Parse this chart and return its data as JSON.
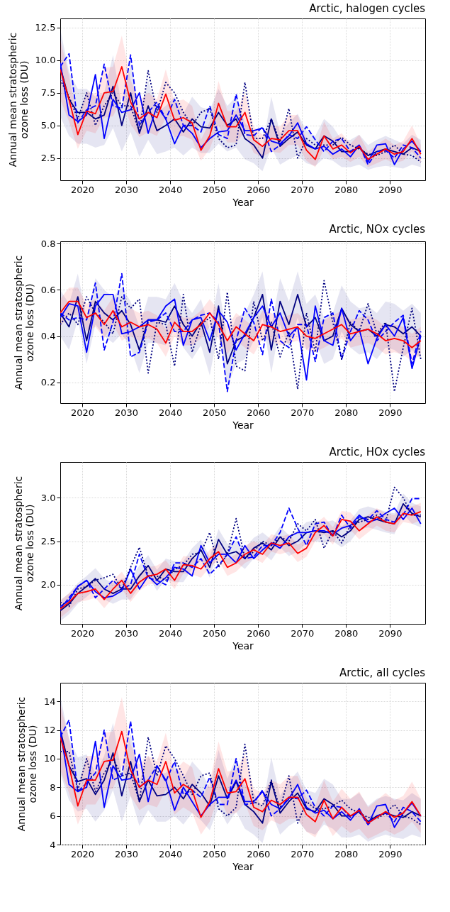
{
  "chart_data": [
    {
      "type": "line",
      "title": "Arctic, halogen cycles",
      "xlabel": "Year",
      "ylabel": "Annual mean stratospheric\nozone loss (DU)",
      "grid": true,
      "x": [
        2015,
        2017,
        2019,
        2021,
        2023,
        2025,
        2027,
        2029,
        2031,
        2033,
        2035,
        2037,
        2039,
        2041,
        2043,
        2045,
        2047,
        2049,
        2051,
        2053,
        2055,
        2057,
        2059,
        2061,
        2063,
        2065,
        2067,
        2069,
        2071,
        2073,
        2075,
        2077,
        2079,
        2081,
        2083,
        2085,
        2087,
        2089,
        2091,
        2093,
        2095,
        2097
      ],
      "xlim": [
        2015,
        2098
      ],
      "xticks": [
        2020,
        2030,
        2040,
        2050,
        2060,
        2070,
        2080,
        2090
      ],
      "ylim": [
        0.8,
        13.2
      ],
      "yticks": [
        2.5,
        {
          "value": 5,
          "label": "5.0"
        },
        7.5,
        {
          "value": 10,
          "label": "10.0"
        },
        12.5
      ],
      "series": [
        {
          "color": "#000080",
          "line_style": "solid",
          "values": [
            9.5,
            7.0,
            6.0,
            6.0,
            5.5,
            5.8,
            8.0,
            5.0,
            7.5,
            4.4,
            6.5,
            4.6,
            5.0,
            5.5,
            4.5,
            5.5,
            4.9,
            4.8,
            6.0,
            5.0,
            5.5,
            4.0,
            3.5,
            2.5,
            5.5,
            3.4,
            4.0,
            4.5,
            3.5,
            3.2,
            4.2,
            3.8,
            3.0,
            3.0,
            3.3,
            2.7,
            3.0,
            3.2,
            3.0,
            2.8,
            3.3,
            3.0
          ],
          "lower": [
            5.7,
            4.2,
            3.6,
            3.6,
            3.3,
            3.5,
            4.8,
            3.0,
            4.5,
            2.6,
            3.9,
            2.8,
            3.0,
            3.3,
            2.7,
            3.3,
            2.9,
            2.9,
            3.6,
            3.0,
            3.3,
            2.4,
            2.1,
            1.5,
            3.3,
            2.0,
            2.4,
            2.7,
            2.1,
            1.9,
            2.5,
            2.3,
            1.8,
            1.8,
            2.0,
            1.6,
            1.8,
            1.9,
            1.8,
            1.7,
            2.0,
            1.8
          ],
          "upper": [
            12.4,
            9.1,
            7.8,
            7.8,
            7.2,
            7.5,
            10.4,
            6.5,
            9.8,
            5.7,
            8.5,
            6.0,
            6.5,
            7.2,
            5.9,
            7.2,
            6.4,
            6.2,
            7.8,
            6.5,
            7.2,
            5.2,
            4.6,
            3.3,
            7.2,
            4.4,
            5.2,
            5.9,
            4.6,
            4.2,
            5.5,
            4.9,
            3.9,
            3.9,
            4.3,
            3.5,
            3.9,
            4.2,
            3.9,
            3.6,
            4.3,
            3.9
          ]
        },
        {
          "color": "#0000ff",
          "line_style": "solid",
          "values": [
            9.8,
            5.8,
            5.3,
            5.8,
            8.9,
            4.0,
            7.0,
            6.0,
            6.2,
            7.5,
            4.4,
            6.5,
            5.5,
            3.6,
            5.0,
            4.4,
            3.3,
            4.0,
            4.5,
            4.6,
            5.8,
            4.6,
            4.6,
            4.8,
            3.8,
            3.6,
            4.2,
            5.2,
            3.6,
            3.2,
            3.4,
            2.8,
            3.2,
            2.6,
            3.5,
            2.2,
            3.5,
            3.6,
            2.0,
            3.2,
            3.8,
            3.0
          ]
        },
        {
          "color": "#0000ff",
          "line_style": "dashed",
          "values": [
            9.5,
            10.5,
            5.2,
            6.2,
            6.5,
            9.7,
            6.5,
            6.3,
            10.4,
            5.0,
            6.0,
            6.8,
            5.5,
            7.0,
            5.0,
            5.0,
            4.5,
            6.5,
            4.3,
            4.0,
            7.4,
            4.3,
            4.2,
            4.9,
            3.0,
            3.5,
            4.3,
            4.0,
            4.9,
            3.9,
            3.0,
            3.8,
            4.0,
            3.0,
            3.5,
            2.0,
            3.0,
            3.1,
            2.5,
            3.5,
            3.3,
            2.5
          ]
        },
        {
          "color": "#000080",
          "line_style": "dotted",
          "values": [
            8.5,
            7.2,
            5.5,
            7.5,
            5.0,
            6.5,
            7.5,
            6.5,
            6.5,
            4.5,
            9.2,
            6.0,
            8.3,
            7.5,
            6.0,
            5.0,
            6.0,
            6.3,
            4.0,
            3.3,
            3.5,
            8.3,
            4.0,
            4.0,
            5.5,
            3.7,
            6.3,
            2.5,
            4.0,
            3.5,
            3.5,
            3.5,
            4.1,
            3.5,
            3.2,
            2.8,
            2.7,
            3.0,
            3.5,
            2.8,
            2.7,
            2.2
          ]
        },
        {
          "color": "#ff0000",
          "line_style": "solid",
          "values": [
            9.3,
            7.0,
            4.3,
            6.1,
            5.9,
            7.5,
            7.6,
            9.5,
            6.8,
            5.5,
            6.0,
            5.6,
            7.4,
            5.4,
            5.6,
            5.2,
            3.1,
            4.2,
            6.7,
            4.9,
            4.9,
            6.0,
            3.9,
            3.4,
            4.0,
            3.9,
            4.6,
            4.6,
            3.1,
            2.4,
            4.2,
            3.2,
            3.5,
            2.9,
            3.4,
            2.4,
            2.8,
            3.2,
            2.8,
            3.0,
            4.0,
            2.8
          ],
          "lower": [
            7.0,
            5.3,
            3.2,
            4.6,
            4.4,
            5.6,
            5.7,
            7.1,
            5.1,
            4.1,
            4.5,
            4.2,
            5.6,
            4.1,
            4.2,
            3.9,
            2.3,
            3.2,
            5.0,
            3.7,
            3.7,
            4.5,
            2.9,
            2.6,
            3.0,
            2.9,
            3.5,
            3.5,
            2.3,
            1.8,
            3.2,
            2.4,
            2.6,
            2.2,
            2.6,
            1.8,
            2.1,
            2.4,
            2.1,
            2.3,
            3.0,
            2.1
          ],
          "upper": [
            11.6,
            8.8,
            5.4,
            7.6,
            7.4,
            9.4,
            9.5,
            11.9,
            8.5,
            6.9,
            7.5,
            7.0,
            9.3,
            6.8,
            7.0,
            6.5,
            3.9,
            5.3,
            8.4,
            6.1,
            6.1,
            7.5,
            4.9,
            4.3,
            5.0,
            4.9,
            5.8,
            5.8,
            3.9,
            3.0,
            5.3,
            4.0,
            4.4,
            3.6,
            4.3,
            3.0,
            3.5,
            4.0,
            3.5,
            3.8,
            5.0,
            3.5
          ]
        }
      ]
    },
    {
      "type": "line",
      "title": "Arctic, NOx cycles",
      "xlabel": "Year",
      "ylabel": "Annual mean stratospheric\nozone loss (DU)",
      "grid": true,
      "x": [
        2015,
        2017,
        2019,
        2021,
        2023,
        2025,
        2027,
        2029,
        2031,
        2033,
        2035,
        2037,
        2039,
        2041,
        2043,
        2045,
        2047,
        2049,
        2051,
        2053,
        2055,
        2057,
        2059,
        2061,
        2063,
        2065,
        2067,
        2069,
        2071,
        2073,
        2075,
        2077,
        2079,
        2081,
        2083,
        2085,
        2087,
        2089,
        2091,
        2093,
        2095,
        2097
      ],
      "xlim": [
        2015,
        2098
      ],
      "xticks": [
        2020,
        2030,
        2040,
        2050,
        2060,
        2070,
        2080,
        2090
      ],
      "ylim": [
        0.11,
        0.81
      ],
      "yticks": [
        0.2,
        0.4,
        0.6,
        0.8
      ],
      "series": [
        {
          "color": "#000080",
          "line_style": "solid",
          "values": [
            0.5,
            0.44,
            0.57,
            0.38,
            0.55,
            0.5,
            0.47,
            0.51,
            0.45,
            0.34,
            0.47,
            0.47,
            0.46,
            0.53,
            0.45,
            0.4,
            0.46,
            0.33,
            0.53,
            0.28,
            0.38,
            0.4,
            0.48,
            0.58,
            0.34,
            0.55,
            0.45,
            0.58,
            0.44,
            0.48,
            0.38,
            0.4,
            0.52,
            0.45,
            0.42,
            0.43,
            0.4,
            0.45,
            0.44,
            0.41,
            0.44,
            0.4
          ],
          "lower": [
            0.4,
            0.34,
            0.47,
            0.28,
            0.45,
            0.4,
            0.37,
            0.41,
            0.35,
            0.24,
            0.37,
            0.37,
            0.36,
            0.43,
            0.35,
            0.3,
            0.36,
            0.23,
            0.43,
            0.18,
            0.28,
            0.3,
            0.38,
            0.48,
            0.24,
            0.45,
            0.35,
            0.48,
            0.34,
            0.38,
            0.28,
            0.3,
            0.42,
            0.35,
            0.32,
            0.33,
            0.3,
            0.35,
            0.34,
            0.31,
            0.34,
            0.3
          ],
          "upper": [
            0.6,
            0.54,
            0.67,
            0.48,
            0.65,
            0.6,
            0.57,
            0.61,
            0.55,
            0.44,
            0.57,
            0.57,
            0.56,
            0.63,
            0.55,
            0.5,
            0.56,
            0.43,
            0.63,
            0.38,
            0.48,
            0.5,
            0.58,
            0.68,
            0.44,
            0.65,
            0.55,
            0.68,
            0.54,
            0.58,
            0.48,
            0.5,
            0.62,
            0.55,
            0.52,
            0.53,
            0.5,
            0.55,
            0.54,
            0.51,
            0.54,
            0.5
          ]
        },
        {
          "color": "#0000ff",
          "line_style": "solid",
          "values": [
            0.48,
            0.54,
            0.53,
            0.33,
            0.53,
            0.58,
            0.58,
            0.41,
            0.42,
            0.44,
            0.47,
            0.47,
            0.53,
            0.56,
            0.36,
            0.47,
            0.48,
            0.38,
            0.51,
            0.46,
            0.34,
            0.41,
            0.48,
            0.53,
            0.44,
            0.5,
            0.4,
            0.44,
            0.21,
            0.53,
            0.38,
            0.36,
            0.52,
            0.38,
            0.43,
            0.28,
            0.39,
            0.45,
            0.4,
            0.48,
            0.26,
            0.4
          ]
        },
        {
          "color": "#0000ff",
          "line_style": "dashed",
          "values": [
            0.5,
            0.47,
            0.48,
            0.47,
            0.63,
            0.34,
            0.46,
            0.67,
            0.31,
            0.33,
            0.46,
            0.47,
            0.5,
            0.42,
            0.42,
            0.47,
            0.49,
            0.5,
            0.46,
            0.16,
            0.38,
            0.52,
            0.46,
            0.32,
            0.56,
            0.38,
            0.35,
            0.45,
            0.45,
            0.29,
            0.48,
            0.5,
            0.3,
            0.42,
            0.51,
            0.47,
            0.38,
            0.42,
            0.46,
            0.49,
            0.28,
            0.42
          ]
        },
        {
          "color": "#000080",
          "line_style": "dotted",
          "values": [
            0.45,
            0.5,
            0.45,
            0.57,
            0.5,
            0.46,
            0.41,
            0.57,
            0.52,
            0.56,
            0.24,
            0.46,
            0.45,
            0.27,
            0.58,
            0.33,
            0.45,
            0.48,
            0.3,
            0.59,
            0.27,
            0.25,
            0.55,
            0.38,
            0.46,
            0.31,
            0.42,
            0.17,
            0.5,
            0.33,
            0.64,
            0.46,
            0.3,
            0.46,
            0.42,
            0.54,
            0.41,
            0.46,
            0.16,
            0.35,
            0.52,
            0.3
          ]
        },
        {
          "color": "#ff0000",
          "line_style": "solid",
          "values": [
            0.5,
            0.55,
            0.55,
            0.48,
            0.5,
            0.45,
            0.51,
            0.44,
            0.46,
            0.44,
            0.45,
            0.43,
            0.37,
            0.46,
            0.42,
            0.42,
            0.45,
            0.5,
            0.45,
            0.38,
            0.44,
            0.41,
            0.38,
            0.45,
            0.44,
            0.42,
            0.43,
            0.44,
            0.4,
            0.39,
            0.41,
            0.43,
            0.45,
            0.41,
            0.42,
            0.43,
            0.41,
            0.38,
            0.39,
            0.38,
            0.35,
            0.38
          ],
          "lower": [
            0.44,
            0.49,
            0.49,
            0.42,
            0.44,
            0.39,
            0.45,
            0.38,
            0.4,
            0.38,
            0.39,
            0.37,
            0.31,
            0.4,
            0.36,
            0.36,
            0.39,
            0.44,
            0.39,
            0.32,
            0.38,
            0.35,
            0.32,
            0.39,
            0.38,
            0.36,
            0.37,
            0.38,
            0.34,
            0.33,
            0.35,
            0.37,
            0.39,
            0.35,
            0.36,
            0.37,
            0.35,
            0.32,
            0.33,
            0.32,
            0.29,
            0.32
          ],
          "upper": [
            0.56,
            0.61,
            0.61,
            0.54,
            0.56,
            0.51,
            0.57,
            0.5,
            0.52,
            0.5,
            0.51,
            0.49,
            0.43,
            0.52,
            0.48,
            0.48,
            0.51,
            0.56,
            0.51,
            0.44,
            0.5,
            0.47,
            0.44,
            0.51,
            0.5,
            0.48,
            0.49,
            0.5,
            0.46,
            0.45,
            0.47,
            0.49,
            0.51,
            0.47,
            0.48,
            0.49,
            0.47,
            0.44,
            0.45,
            0.44,
            0.41,
            0.44
          ]
        }
      ]
    },
    {
      "type": "line",
      "title": "Arctic, HOx cycles",
      "xlabel": "Year",
      "ylabel": "Annual mean stratospheric\nozone loss (DU)",
      "grid": true,
      "x": [
        2015,
        2017,
        2019,
        2021,
        2023,
        2025,
        2027,
        2029,
        2031,
        2033,
        2035,
        2037,
        2039,
        2041,
        2043,
        2045,
        2047,
        2049,
        2051,
        2053,
        2055,
        2057,
        2059,
        2061,
        2063,
        2065,
        2067,
        2069,
        2071,
        2073,
        2075,
        2077,
        2079,
        2081,
        2083,
        2085,
        2087,
        2089,
        2091,
        2093,
        2095,
        2097
      ],
      "xlim": [
        2015,
        2098
      ],
      "xticks": [
        2020,
        2030,
        2040,
        2050,
        2060,
        2070,
        2080,
        2090
      ],
      "ylim": [
        1.55,
        3.41
      ],
      "yticks": [
        {
          "value": 2,
          "label": "2.0"
        },
        2.5,
        {
          "value": 3,
          "label": "3.0"
        }
      ],
      "series": [
        {
          "color": "#000080",
          "line_style": "solid",
          "values": [
            1.7,
            1.78,
            1.9,
            1.98,
            2.07,
            1.95,
            1.9,
            1.95,
            1.95,
            2.1,
            2.22,
            2.05,
            2.18,
            2.15,
            2.15,
            2.3,
            2.4,
            2.2,
            2.52,
            2.35,
            2.38,
            2.3,
            2.42,
            2.48,
            2.4,
            2.55,
            2.45,
            2.5,
            2.6,
            2.62,
            2.6,
            2.62,
            2.55,
            2.62,
            2.75,
            2.78,
            2.75,
            2.72,
            2.7,
            2.93,
            2.82,
            2.78
          ],
          "lower": [
            1.58,
            1.66,
            1.78,
            1.86,
            1.95,
            1.83,
            1.78,
            1.83,
            1.83,
            1.98,
            2.1,
            1.93,
            2.06,
            2.03,
            2.03,
            2.18,
            2.28,
            2.08,
            2.4,
            2.23,
            2.26,
            2.18,
            2.3,
            2.36,
            2.28,
            2.43,
            2.33,
            2.38,
            2.48,
            2.5,
            2.48,
            2.5,
            2.43,
            2.5,
            2.63,
            2.66,
            2.63,
            2.6,
            2.58,
            2.81,
            2.7,
            2.66
          ],
          "upper": [
            1.82,
            1.9,
            2.02,
            2.1,
            2.19,
            2.07,
            2.02,
            2.07,
            2.07,
            2.22,
            2.34,
            2.17,
            2.3,
            2.27,
            2.27,
            2.42,
            2.52,
            2.32,
            2.64,
            2.47,
            2.5,
            2.42,
            2.54,
            2.6,
            2.52,
            2.67,
            2.57,
            2.62,
            2.72,
            2.74,
            2.72,
            2.74,
            2.67,
            2.74,
            2.87,
            2.9,
            2.87,
            2.84,
            2.82,
            3.05,
            2.94,
            2.9
          ]
        },
        {
          "color": "#0000ff",
          "line_style": "solid",
          "values": [
            1.75,
            1.82,
            1.98,
            2.05,
            1.92,
            1.85,
            1.87,
            1.93,
            2.18,
            1.95,
            2.1,
            2.0,
            2.08,
            2.2,
            2.18,
            2.1,
            2.45,
            2.25,
            2.35,
            2.35,
            2.25,
            2.45,
            2.3,
            2.4,
            2.48,
            2.42,
            2.55,
            2.6,
            2.6,
            2.62,
            2.62,
            2.58,
            2.65,
            2.68,
            2.8,
            2.72,
            2.75,
            2.82,
            2.88,
            2.75,
            2.88,
            2.7
          ]
        },
        {
          "color": "#0000ff",
          "line_style": "dashed",
          "values": [
            1.72,
            1.85,
            1.98,
            2.05,
            1.85,
            1.95,
            2.05,
            1.95,
            2.0,
            2.35,
            2.08,
            2.05,
            2.0,
            2.25,
            2.25,
            2.2,
            2.3,
            2.12,
            2.22,
            2.35,
            2.55,
            2.3,
            2.32,
            2.45,
            2.45,
            2.6,
            2.88,
            2.65,
            2.45,
            2.7,
            2.72,
            2.55,
            2.8,
            2.65,
            2.78,
            2.75,
            2.85,
            2.75,
            2.72,
            2.8,
            2.99,
            2.99
          ]
        },
        {
          "color": "#000080",
          "line_style": "dotted",
          "values": [
            1.8,
            1.75,
            1.95,
            1.98,
            2.05,
            2.08,
            2.12,
            1.95,
            2.2,
            2.43,
            2.1,
            2.1,
            2.05,
            2.18,
            2.22,
            2.35,
            2.37,
            2.6,
            2.2,
            2.35,
            2.76,
            2.3,
            2.38,
            2.5,
            2.45,
            2.55,
            2.5,
            2.7,
            2.62,
            2.75,
            2.42,
            2.62,
            2.48,
            2.68,
            2.72,
            2.75,
            2.8,
            2.72,
            3.12,
            3.0,
            2.8,
            2.8
          ]
        },
        {
          "color": "#ff0000",
          "line_style": "solid",
          "values": [
            1.72,
            1.8,
            1.9,
            1.92,
            1.95,
            1.83,
            1.95,
            2.05,
            1.9,
            2.03,
            2.1,
            2.12,
            2.18,
            2.05,
            2.23,
            2.22,
            2.18,
            2.3,
            2.38,
            2.2,
            2.25,
            2.35,
            2.4,
            2.35,
            2.48,
            2.45,
            2.48,
            2.36,
            2.42,
            2.6,
            2.68,
            2.56,
            2.75,
            2.73,
            2.62,
            2.7,
            2.78,
            2.72,
            2.7,
            2.82,
            2.8,
            2.84
          ],
          "lower": [
            1.62,
            1.7,
            1.8,
            1.82,
            1.85,
            1.73,
            1.85,
            1.95,
            1.8,
            1.93,
            2.0,
            2.02,
            2.08,
            1.95,
            2.13,
            2.12,
            2.08,
            2.2,
            2.28,
            2.1,
            2.15,
            2.25,
            2.3,
            2.25,
            2.38,
            2.35,
            2.38,
            2.26,
            2.32,
            2.5,
            2.58,
            2.46,
            2.65,
            2.63,
            2.52,
            2.6,
            2.68,
            2.62,
            2.6,
            2.72,
            2.7,
            2.74
          ],
          "upper": [
            1.82,
            1.9,
            2.0,
            2.02,
            2.05,
            1.93,
            2.05,
            2.15,
            2.0,
            2.13,
            2.2,
            2.22,
            2.28,
            2.15,
            2.33,
            2.32,
            2.28,
            2.4,
            2.48,
            2.3,
            2.35,
            2.45,
            2.5,
            2.45,
            2.58,
            2.55,
            2.58,
            2.46,
            2.52,
            2.7,
            2.78,
            2.66,
            2.85,
            2.83,
            2.72,
            2.8,
            2.88,
            2.82,
            2.8,
            2.92,
            2.9,
            2.94
          ]
        }
      ]
    },
    {
      "type": "line",
      "title": "Arctic, all cycles",
      "xlabel": "Year",
      "ylabel": "Annual mean stratospheric\nozone loss (DU)",
      "grid": true,
      "x": [
        2015,
        2017,
        2019,
        2021,
        2023,
        2025,
        2027,
        2029,
        2031,
        2033,
        2035,
        2037,
        2039,
        2041,
        2043,
        2045,
        2047,
        2049,
        2051,
        2053,
        2055,
        2057,
        2059,
        2061,
        2063,
        2065,
        2067,
        2069,
        2071,
        2073,
        2075,
        2077,
        2079,
        2081,
        2083,
        2085,
        2087,
        2089,
        2091,
        2093,
        2095,
        2097
      ],
      "xlim": [
        2015,
        2098
      ],
      "xticks": [
        2020,
        2030,
        2040,
        2050,
        2060,
        2070,
        2080,
        2090
      ],
      "ylim": [
        4,
        15.3
      ],
      "yticks": [
        4,
        6,
        8,
        10,
        12,
        14
      ],
      "series": [
        {
          "color": "#000080",
          "line_style": "solid",
          "values": [
            12.0,
            9.5,
            8.4,
            8.6,
            7.5,
            8.5,
            10.4,
            7.4,
            9.8,
            7.0,
            8.5,
            7.4,
            7.5,
            8.0,
            7.2,
            8.2,
            7.6,
            6.7,
            8.8,
            7.2,
            8.4,
            6.8,
            6.3,
            5.5,
            8.4,
            6.2,
            7.0,
            7.6,
            6.5,
            6.3,
            7.2,
            6.8,
            6.0,
            6.0,
            6.3,
            5.6,
            6.0,
            6.2,
            6.0,
            5.9,
            6.3,
            6.0
          ],
          "lower": [
            9.0,
            7.1,
            6.3,
            6.5,
            5.6,
            6.4,
            7.8,
            5.6,
            7.4,
            5.3,
            6.4,
            5.6,
            5.6,
            6.0,
            5.4,
            6.2,
            5.7,
            5.0,
            6.6,
            5.4,
            6.3,
            5.1,
            4.7,
            4.1,
            6.3,
            4.7,
            5.3,
            5.7,
            4.9,
            4.7,
            5.4,
            5.1,
            4.5,
            4.5,
            4.7,
            4.2,
            4.5,
            4.7,
            4.5,
            4.4,
            4.7,
            4.5
          ],
          "upper": [
            14.4,
            11.4,
            10.1,
            10.3,
            9.0,
            10.2,
            12.5,
            8.9,
            11.8,
            8.4,
            10.2,
            8.9,
            9.0,
            9.6,
            8.6,
            9.8,
            9.1,
            8.0,
            10.6,
            8.6,
            10.1,
            8.2,
            7.6,
            6.6,
            10.1,
            7.4,
            8.4,
            9.1,
            7.8,
            7.6,
            8.6,
            8.2,
            7.2,
            7.2,
            7.6,
            6.7,
            7.2,
            7.4,
            7.2,
            7.1,
            7.6,
            7.2
          ]
        },
        {
          "color": "#0000ff",
          "line_style": "solid",
          "values": [
            12.0,
            8.2,
            7.7,
            8.0,
            11.2,
            6.6,
            9.5,
            8.5,
            8.6,
            10.3,
            7.0,
            9.5,
            8.5,
            6.4,
            8.0,
            7.0,
            6.0,
            6.8,
            7.3,
            7.3,
            8.5,
            7.0,
            7.0,
            7.7,
            6.8,
            6.5,
            7.2,
            8.2,
            6.6,
            6.2,
            6.4,
            5.8,
            6.3,
            5.7,
            6.5,
            5.4,
            6.7,
            6.8,
            5.2,
            6.2,
            6.9,
            6.0
          ]
        },
        {
          "color": "#0000ff",
          "line_style": "dashed",
          "values": [
            11.5,
            12.7,
            7.7,
            8.3,
            9.0,
            12.0,
            8.5,
            8.8,
            12.6,
            8.0,
            8.5,
            9.5,
            8.4,
            9.8,
            7.5,
            7.8,
            7.3,
            8.7,
            6.8,
            6.8,
            10.0,
            6.8,
            6.9,
            7.8,
            6.0,
            6.5,
            7.3,
            7.2,
            7.8,
            6.6,
            6.0,
            6.7,
            6.6,
            5.9,
            6.3,
            5.4,
            6.0,
            6.2,
            5.6,
            6.6,
            6.3,
            5.6
          ]
        },
        {
          "color": "#000080",
          "line_style": "dotted",
          "values": [
            10.5,
            10.5,
            7.8,
            10.0,
            7.7,
            9.0,
            10.0,
            8.8,
            9.0,
            7.0,
            11.5,
            8.8,
            10.9,
            10.0,
            8.8,
            7.5,
            8.8,
            9.0,
            6.5,
            6.0,
            6.6,
            11.0,
            7.0,
            6.7,
            8.5,
            6.5,
            8.8,
            5.5,
            7.0,
            6.5,
            6.5,
            6.7,
            7.1,
            6.5,
            6.2,
            5.9,
            5.8,
            6.2,
            6.8,
            6.0,
            5.8,
            5.4
          ]
        },
        {
          "color": "#ff0000",
          "line_style": "solid",
          "values": [
            11.5,
            9.5,
            6.7,
            8.5,
            8.5,
            9.8,
            9.9,
            11.9,
            9.2,
            8.0,
            8.5,
            8.2,
            9.8,
            7.6,
            8.2,
            7.8,
            5.9,
            7.0,
            9.3,
            7.6,
            7.7,
            8.6,
            6.6,
            6.3,
            7.1,
            6.8,
            7.3,
            7.3,
            6.1,
            5.6,
            7.1,
            5.8,
            6.6,
            6.0,
            6.4,
            5.5,
            5.9,
            6.3,
            5.9,
            6.2,
            7.0,
            6.0
          ],
          "lower": [
            9.2,
            7.6,
            5.4,
            6.8,
            6.8,
            7.8,
            7.9,
            9.5,
            7.4,
            6.4,
            6.8,
            6.6,
            7.8,
            6.1,
            6.6,
            6.2,
            4.7,
            5.6,
            7.4,
            6.1,
            6.2,
            6.9,
            5.3,
            5.0,
            5.7,
            5.4,
            5.8,
            5.8,
            4.9,
            4.5,
            5.7,
            4.6,
            5.3,
            4.8,
            5.1,
            4.4,
            4.7,
            5.0,
            4.7,
            5.0,
            5.6,
            4.8
          ],
          "upper": [
            13.8,
            11.4,
            8.0,
            10.2,
            10.2,
            11.8,
            11.9,
            14.3,
            11.0,
            9.6,
            10.2,
            9.8,
            11.8,
            9.1,
            9.8,
            9.4,
            7.1,
            8.4,
            11.2,
            9.1,
            9.2,
            10.3,
            7.9,
            7.6,
            8.5,
            8.2,
            8.8,
            8.8,
            7.3,
            6.7,
            8.5,
            7.0,
            7.9,
            7.2,
            7.7,
            6.6,
            7.1,
            7.6,
            7.1,
            7.4,
            8.4,
            7.2
          ]
        }
      ]
    }
  ]
}
